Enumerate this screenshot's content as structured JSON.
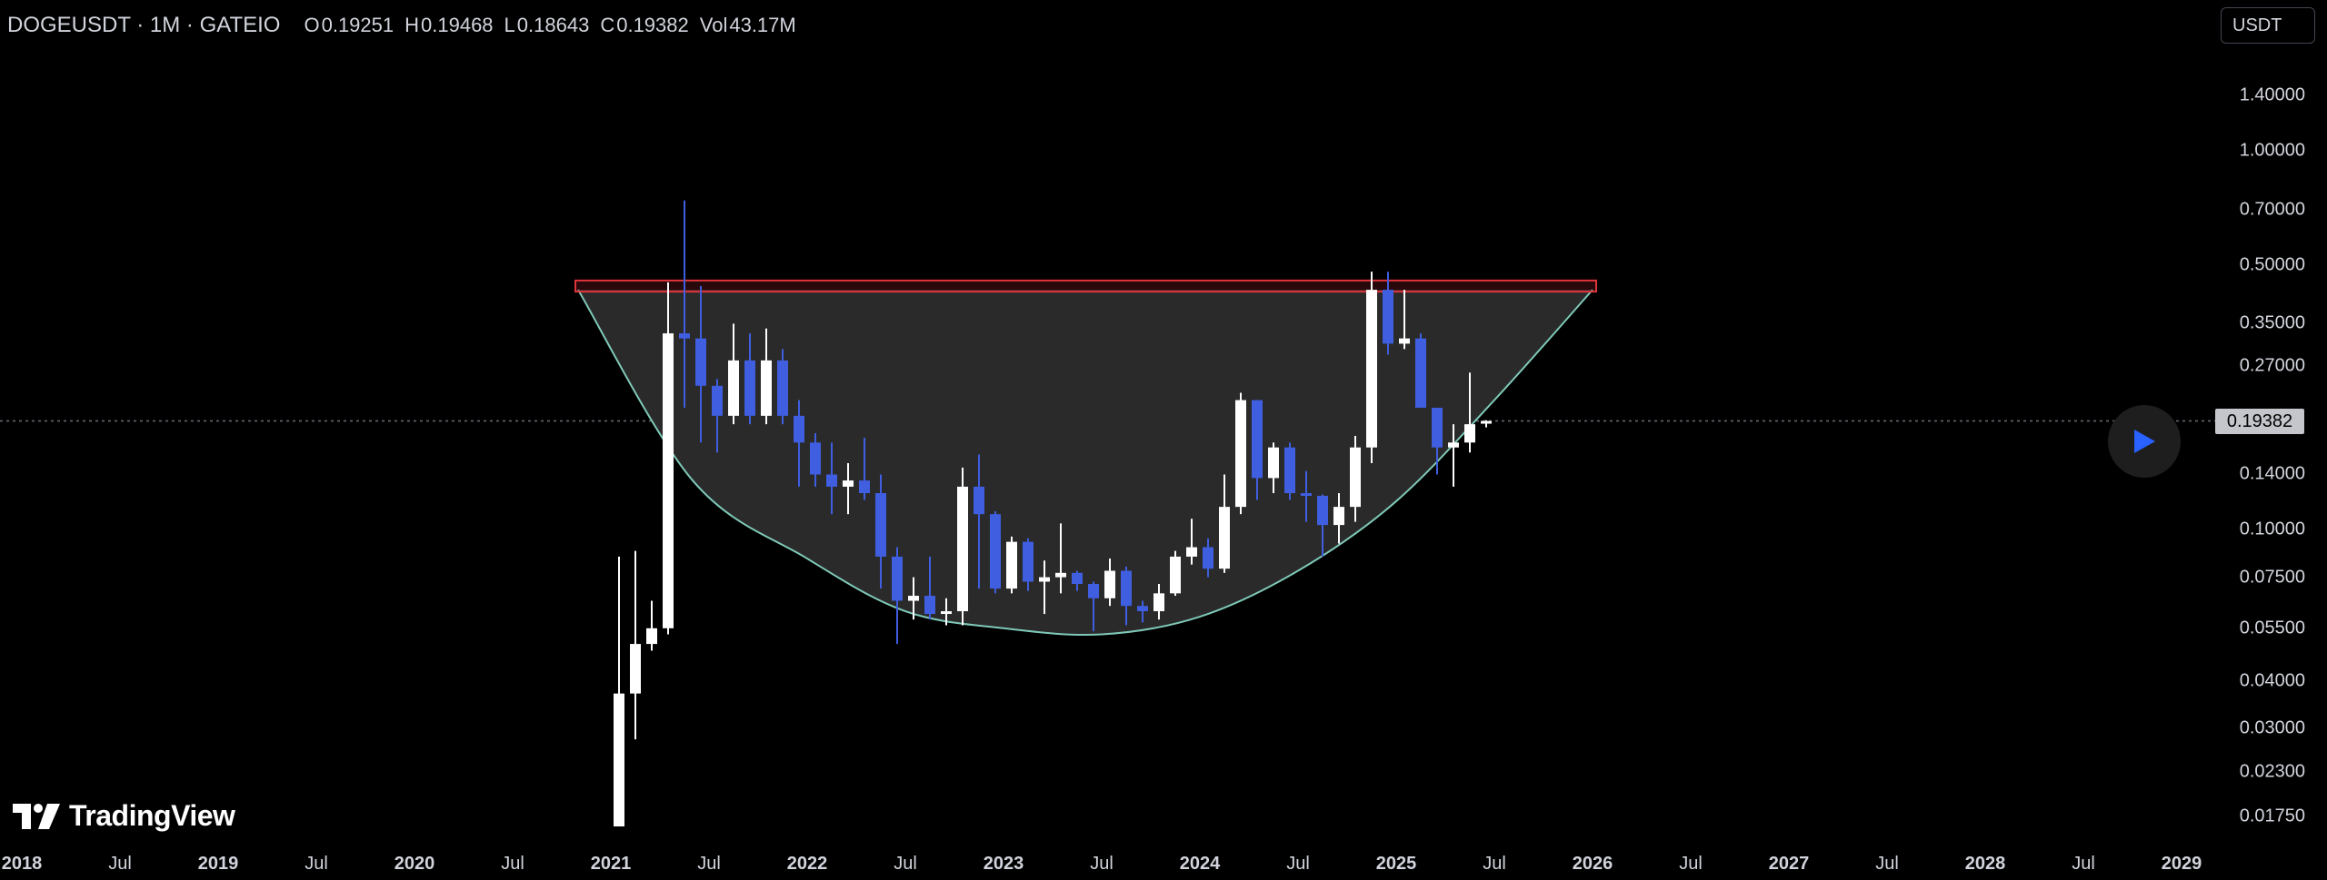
{
  "legend": {
    "symbol": "DOGEUSDT · 1M · GATEIO",
    "open_label": "O",
    "open": "0.19251",
    "high_label": "H",
    "high": "0.19468",
    "low_label": "L",
    "low": "0.18643",
    "close_label": "C",
    "close": "0.19382",
    "vol_label": "Vol",
    "vol": "43.17M"
  },
  "currency_button": "USDT",
  "last_price": "0.19382",
  "logo_text": "TradingView",
  "colors": {
    "up_candle": "#ffffff",
    "down_candle": "#3f5ee0",
    "resistance_zone": "#e0343c",
    "cup_curve": "#7fc9b8",
    "cup_fill": "#2a2a2a",
    "background": "#000000"
  },
  "chart_data": {
    "type": "candlestick",
    "title": "",
    "y_scale": "log",
    "ylim": [
      0.0165,
      1.7
    ],
    "x_range": [
      "2017-12",
      "2029-03"
    ],
    "price_ticks": [
      "1.40000",
      "1.00000",
      "0.70000",
      "0.50000",
      "0.35000",
      "0.27000",
      "0.14000",
      "0.10000",
      "0.07500",
      "0.05500",
      "0.04000",
      "0.03000",
      "0.02300",
      "0.01750"
    ],
    "time_ticks": [
      {
        "label": "2018",
        "date": "2018-01",
        "year": true
      },
      {
        "label": "Jul",
        "date": "2018-07",
        "year": false
      },
      {
        "label": "2019",
        "date": "2019-01",
        "year": true
      },
      {
        "label": "Jul",
        "date": "2019-07",
        "year": false
      },
      {
        "label": "2020",
        "date": "2020-01",
        "year": true
      },
      {
        "label": "Jul",
        "date": "2020-07",
        "year": false
      },
      {
        "label": "2021",
        "date": "2021-01",
        "year": true
      },
      {
        "label": "Jul",
        "date": "2021-07",
        "year": false
      },
      {
        "label": "2022",
        "date": "2022-01",
        "year": true
      },
      {
        "label": "Jul",
        "date": "2022-07",
        "year": false
      },
      {
        "label": "2023",
        "date": "2023-01",
        "year": true
      },
      {
        "label": "Jul",
        "date": "2023-07",
        "year": false
      },
      {
        "label": "2024",
        "date": "2024-01",
        "year": true
      },
      {
        "label": "Jul",
        "date": "2024-07",
        "year": false
      },
      {
        "label": "2025",
        "date": "2025-01",
        "year": true
      },
      {
        "label": "Jul",
        "date": "2025-07",
        "year": false
      },
      {
        "label": "2026",
        "date": "2026-01",
        "year": true
      },
      {
        "label": "Jul",
        "date": "2026-07",
        "year": false
      },
      {
        "label": "2027",
        "date": "2027-01",
        "year": true
      },
      {
        "label": "Jul",
        "date": "2027-07",
        "year": false
      },
      {
        "label": "2028",
        "date": "2028-01",
        "year": true
      },
      {
        "label": "Jul",
        "date": "2028-07",
        "year": false
      },
      {
        "label": "2029",
        "date": "2029-01",
        "year": true
      }
    ],
    "candles": [
      {
        "date": "2021-01",
        "o": 0.0056,
        "h": 0.085,
        "l": 0.0055,
        "c": 0.037
      },
      {
        "date": "2021-02",
        "o": 0.037,
        "h": 0.088,
        "l": 0.028,
        "c": 0.05
      },
      {
        "date": "2021-03",
        "o": 0.05,
        "h": 0.065,
        "l": 0.048,
        "c": 0.055
      },
      {
        "date": "2021-04",
        "o": 0.055,
        "h": 0.45,
        "l": 0.053,
        "c": 0.33
      },
      {
        "date": "2021-05",
        "o": 0.33,
        "h": 0.74,
        "l": 0.21,
        "c": 0.32
      },
      {
        "date": "2021-06",
        "o": 0.32,
        "h": 0.44,
        "l": 0.17,
        "c": 0.24
      },
      {
        "date": "2021-07",
        "o": 0.24,
        "h": 0.25,
        "l": 0.16,
        "c": 0.2
      },
      {
        "date": "2021-08",
        "o": 0.2,
        "h": 0.35,
        "l": 0.19,
        "c": 0.28
      },
      {
        "date": "2021-09",
        "o": 0.28,
        "h": 0.33,
        "l": 0.19,
        "c": 0.2
      },
      {
        "date": "2021-10",
        "o": 0.2,
        "h": 0.34,
        "l": 0.19,
        "c": 0.28
      },
      {
        "date": "2021-11",
        "o": 0.28,
        "h": 0.3,
        "l": 0.19,
        "c": 0.2
      },
      {
        "date": "2021-12",
        "o": 0.2,
        "h": 0.22,
        "l": 0.13,
        "c": 0.17
      },
      {
        "date": "2022-01",
        "o": 0.17,
        "h": 0.18,
        "l": 0.13,
        "c": 0.14
      },
      {
        "date": "2022-02",
        "o": 0.14,
        "h": 0.17,
        "l": 0.11,
        "c": 0.13
      },
      {
        "date": "2022-03",
        "o": 0.13,
        "h": 0.15,
        "l": 0.11,
        "c": 0.135
      },
      {
        "date": "2022-04",
        "o": 0.135,
        "h": 0.175,
        "l": 0.12,
        "c": 0.125
      },
      {
        "date": "2022-05",
        "o": 0.125,
        "h": 0.14,
        "l": 0.07,
        "c": 0.085
      },
      {
        "date": "2022-06",
        "o": 0.085,
        "h": 0.09,
        "l": 0.05,
        "c": 0.065
      },
      {
        "date": "2022-07",
        "o": 0.065,
        "h": 0.075,
        "l": 0.058,
        "c": 0.067
      },
      {
        "date": "2022-08",
        "o": 0.067,
        "h": 0.085,
        "l": 0.058,
        "c": 0.06
      },
      {
        "date": "2022-09",
        "o": 0.06,
        "h": 0.066,
        "l": 0.056,
        "c": 0.061
      },
      {
        "date": "2022-10",
        "o": 0.061,
        "h": 0.146,
        "l": 0.056,
        "c": 0.13
      },
      {
        "date": "2022-11",
        "o": 0.13,
        "h": 0.158,
        "l": 0.07,
        "c": 0.11
      },
      {
        "date": "2022-12",
        "o": 0.11,
        "h": 0.112,
        "l": 0.068,
        "c": 0.07
      },
      {
        "date": "2023-01",
        "o": 0.07,
        "h": 0.096,
        "l": 0.068,
        "c": 0.093
      },
      {
        "date": "2023-02",
        "o": 0.093,
        "h": 0.095,
        "l": 0.069,
        "c": 0.073
      },
      {
        "date": "2023-03",
        "o": 0.073,
        "h": 0.083,
        "l": 0.06,
        "c": 0.075
      },
      {
        "date": "2023-04",
        "o": 0.075,
        "h": 0.104,
        "l": 0.068,
        "c": 0.077
      },
      {
        "date": "2023-05",
        "o": 0.077,
        "h": 0.078,
        "l": 0.069,
        "c": 0.072
      },
      {
        "date": "2023-06",
        "o": 0.072,
        "h": 0.073,
        "l": 0.054,
        "c": 0.066
      },
      {
        "date": "2023-07",
        "o": 0.066,
        "h": 0.084,
        "l": 0.063,
        "c": 0.078
      },
      {
        "date": "2023-08",
        "o": 0.078,
        "h": 0.08,
        "l": 0.056,
        "c": 0.063
      },
      {
        "date": "2023-09",
        "o": 0.063,
        "h": 0.065,
        "l": 0.057,
        "c": 0.061
      },
      {
        "date": "2023-10",
        "o": 0.061,
        "h": 0.072,
        "l": 0.058,
        "c": 0.068
      },
      {
        "date": "2023-11",
        "o": 0.068,
        "h": 0.088,
        "l": 0.067,
        "c": 0.085
      },
      {
        "date": "2023-12",
        "o": 0.085,
        "h": 0.107,
        "l": 0.081,
        "c": 0.09
      },
      {
        "date": "2024-01",
        "o": 0.09,
        "h": 0.095,
        "l": 0.075,
        "c": 0.079
      },
      {
        "date": "2024-02",
        "o": 0.079,
        "h": 0.14,
        "l": 0.077,
        "c": 0.115
      },
      {
        "date": "2024-03",
        "o": 0.115,
        "h": 0.23,
        "l": 0.11,
        "c": 0.22
      },
      {
        "date": "2024-04",
        "o": 0.22,
        "h": 0.22,
        "l": 0.12,
        "c": 0.137
      },
      {
        "date": "2024-05",
        "o": 0.137,
        "h": 0.17,
        "l": 0.125,
        "c": 0.165
      },
      {
        "date": "2024-06",
        "o": 0.165,
        "h": 0.17,
        "l": 0.12,
        "c": 0.125
      },
      {
        "date": "2024-07",
        "o": 0.125,
        "h": 0.143,
        "l": 0.105,
        "c": 0.123
      },
      {
        "date": "2024-08",
        "o": 0.123,
        "h": 0.124,
        "l": 0.085,
        "c": 0.103
      },
      {
        "date": "2024-09",
        "o": 0.103,
        "h": 0.125,
        "l": 0.092,
        "c": 0.115
      },
      {
        "date": "2024-10",
        "o": 0.115,
        "h": 0.177,
        "l": 0.105,
        "c": 0.165
      },
      {
        "date": "2024-11",
        "o": 0.165,
        "h": 0.48,
        "l": 0.15,
        "c": 0.43
      },
      {
        "date": "2024-12",
        "o": 0.43,
        "h": 0.48,
        "l": 0.29,
        "c": 0.31
      },
      {
        "date": "2025-01",
        "o": 0.31,
        "h": 0.43,
        "l": 0.3,
        "c": 0.32
      },
      {
        "date": "2025-02",
        "o": 0.32,
        "h": 0.33,
        "l": 0.21,
        "c": 0.21
      },
      {
        "date": "2025-03",
        "o": 0.21,
        "h": 0.21,
        "l": 0.14,
        "c": 0.165
      },
      {
        "date": "2025-04",
        "o": 0.165,
        "h": 0.19,
        "l": 0.13,
        "c": 0.17
      },
      {
        "date": "2025-05",
        "o": 0.17,
        "h": 0.26,
        "l": 0.16,
        "c": 0.19
      },
      {
        "date": "2025-06",
        "o": 0.19251,
        "h": 0.19468,
        "l": 0.18643,
        "c": 0.19382
      }
    ],
    "resistance_zone": {
      "start": "2020-11",
      "end": "2026-01",
      "top": 0.45,
      "bottom": 0.43
    },
    "cup_curve": [
      {
        "date": "2020-11",
        "price": 0.43
      },
      {
        "date": "2021-06",
        "price": 0.135
      },
      {
        "date": "2022-01",
        "price": 0.084
      },
      {
        "date": "2022-07",
        "price": 0.061
      },
      {
        "date": "2023-01",
        "price": 0.055
      },
      {
        "date": "2023-07",
        "price": 0.053
      },
      {
        "date": "2024-01",
        "price": 0.059
      },
      {
        "date": "2024-07",
        "price": 0.078
      },
      {
        "date": "2025-01",
        "price": 0.119
      },
      {
        "date": "2025-07",
        "price": 0.22
      },
      {
        "date": "2026-01",
        "price": 0.43
      }
    ]
  }
}
